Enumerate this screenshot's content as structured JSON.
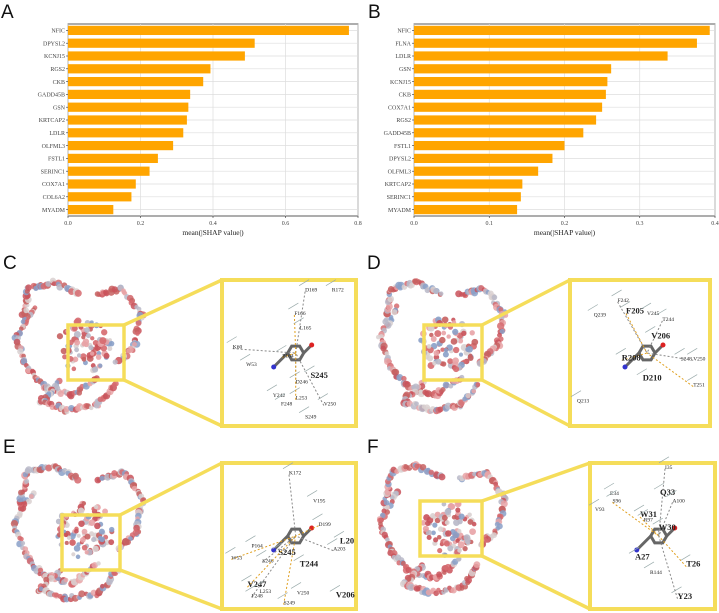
{
  "panel_labels": [
    "A",
    "B",
    "C",
    "D",
    "E",
    "F"
  ],
  "chart_data": [
    {
      "type": "bar",
      "orientation": "horizontal",
      "panel": "A",
      "categories": [
        "NFIC",
        "DPYSL2",
        "KCNJ15",
        "RGS2",
        "CKB",
        "GADD45B",
        "GSN",
        "KRTCAP2",
        "LDLR",
        "OLFML3",
        "FSTL1",
        "SERINC1",
        "COX7A1",
        "COL6A2",
        "MYADM"
      ],
      "values": [
        0.775,
        0.515,
        0.488,
        0.393,
        0.373,
        0.337,
        0.332,
        0.328,
        0.318,
        0.29,
        0.248,
        0.225,
        0.187,
        0.175,
        0.125
      ],
      "xlabel": "mean(|SHAP value|)",
      "ylabel": "",
      "xlim": [
        0,
        0.8
      ],
      "xticks": [
        "0.0",
        "0.2",
        "0.4",
        "0.6",
        "0.8"
      ],
      "grid": true,
      "color": "#FFA500"
    },
    {
      "type": "bar",
      "orientation": "horizontal",
      "panel": "B",
      "categories": [
        "NFIC",
        "FLNA",
        "LDLR",
        "GSN",
        "KCNJ15",
        "CKB",
        "COX7A1",
        "RGS2",
        "GADD45B",
        "FSTL1",
        "DPYSL2",
        "OLFML3",
        "KRTCAP2",
        "SERINC1",
        "MYADM"
      ],
      "values": [
        0.393,
        0.376,
        0.337,
        0.262,
        0.257,
        0.255,
        0.25,
        0.242,
        0.225,
        0.2,
        0.184,
        0.165,
        0.144,
        0.142,
        0.137
      ],
      "xlabel": "mean(|SHAP value|)",
      "ylabel": "",
      "xlim": [
        0,
        0.4
      ],
      "xticks": [
        "0.0",
        "0.1",
        "0.2",
        "0.3",
        "0.4"
      ],
      "grid": true,
      "color": "#FFA500"
    }
  ],
  "docking": [
    {
      "panel": "C",
      "residues": [
        "D169",
        "R172",
        "F166",
        "L165",
        "K60",
        "W53",
        "P164",
        "S245",
        "D246",
        "Y242",
        "L253",
        "F248",
        "V250",
        "S249"
      ]
    },
    {
      "panel": "D",
      "residues": [
        "F242",
        "Q239",
        "F205",
        "V245",
        "T244",
        "V206",
        "R208",
        "S248",
        "V250",
        "D210",
        "T251",
        "Q213"
      ]
    },
    {
      "panel": "E",
      "residues": [
        "K172",
        "V195",
        "D199",
        "L20",
        "A203",
        "P164",
        "W53",
        "S245",
        "S246",
        "T244",
        "V247",
        "L253",
        "F248",
        "V250",
        "S249",
        "V206"
      ]
    },
    {
      "panel": "F",
      "residues": [
        "I35",
        "E34",
        "S96",
        "Q33",
        "A100",
        "V93",
        "W31",
        "R97",
        "W30",
        "A27",
        "T26",
        "R144",
        "Y23"
      ]
    }
  ],
  "colors": {
    "bar": "#FFA500",
    "highlight": "#F5DD5A",
    "grid": "#DDDDDD"
  }
}
